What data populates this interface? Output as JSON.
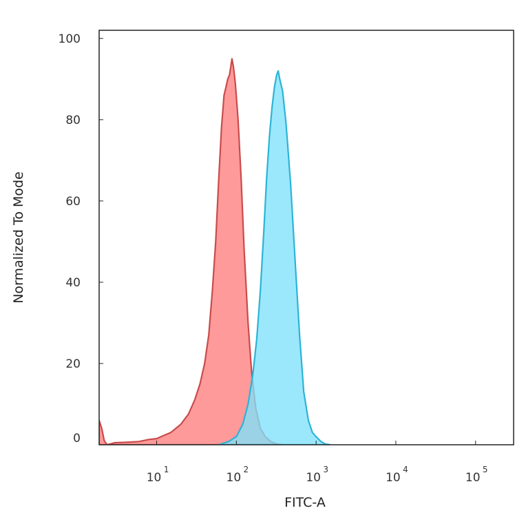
{
  "chart_data": {
    "type": "area",
    "title": "",
    "xlabel": "FITC-A",
    "ylabel": "Normalized To Mode",
    "xscale": "log",
    "xlim": [
      1.9,
      300000
    ],
    "ylim": [
      0,
      102
    ],
    "grid": false,
    "legend": "none",
    "x_ticks": [
      {
        "value": 10,
        "base": "10",
        "exp": "1"
      },
      {
        "value": 100,
        "base": "10",
        "exp": "2"
      },
      {
        "value": 1000,
        "base": "10",
        "exp": "3"
      },
      {
        "value": 10000,
        "base": "10",
        "exp": "4"
      },
      {
        "value": 100000,
        "base": "10",
        "exp": "5"
      }
    ],
    "y_ticks": [
      {
        "value": 0,
        "label": "0"
      },
      {
        "value": 20,
        "label": "20"
      },
      {
        "value": 40,
        "label": "40"
      },
      {
        "value": 60,
        "label": "60"
      },
      {
        "value": 80,
        "label": "80"
      },
      {
        "value": 100,
        "label": "100"
      }
    ],
    "series": [
      {
        "fill": "#ff9a9a",
        "stroke": "#c94b4b",
        "points": [
          [
            1.9,
            6
          ],
          [
            2.05,
            4
          ],
          [
            2.2,
            1
          ],
          [
            2.4,
            0
          ],
          [
            3,
            0.5
          ],
          [
            4,
            0.6
          ],
          [
            6,
            0.8
          ],
          [
            8,
            1.3
          ],
          [
            10,
            1.5
          ],
          [
            12,
            2.2
          ],
          [
            15,
            3.0
          ],
          [
            20,
            5.0
          ],
          [
            25,
            7.5
          ],
          [
            30,
            11
          ],
          [
            35,
            15
          ],
          [
            40,
            20
          ],
          [
            45,
            27
          ],
          [
            50,
            38
          ],
          [
            55,
            50
          ],
          [
            60,
            65
          ],
          [
            65,
            78
          ],
          [
            70,
            86
          ],
          [
            74,
            88
          ],
          [
            78,
            90
          ],
          [
            82,
            91
          ],
          [
            85,
            93
          ],
          [
            88,
            95
          ],
          [
            92,
            93
          ],
          [
            97,
            89
          ],
          [
            105,
            80
          ],
          [
            115,
            65
          ],
          [
            125,
            48
          ],
          [
            140,
            30
          ],
          [
            155,
            18
          ],
          [
            175,
            9
          ],
          [
            200,
            4
          ],
          [
            230,
            2
          ],
          [
            270,
            0.8
          ],
          [
            320,
            0.2
          ],
          [
            380,
            0
          ]
        ]
      },
      {
        "fill": "#7fe1fb",
        "stroke": "#2cb3d6",
        "points": [
          [
            60,
            0
          ],
          [
            80,
            0.8
          ],
          [
            100,
            2.0
          ],
          [
            120,
            5
          ],
          [
            140,
            10
          ],
          [
            160,
            17
          ],
          [
            180,
            26
          ],
          [
            200,
            38
          ],
          [
            220,
            52
          ],
          [
            240,
            66
          ],
          [
            260,
            76
          ],
          [
            280,
            83
          ],
          [
            300,
            88
          ],
          [
            320,
            91
          ],
          [
            335,
            92
          ],
          [
            350,
            90
          ],
          [
            380,
            87
          ],
          [
            420,
            79
          ],
          [
            480,
            64
          ],
          [
            550,
            44
          ],
          [
            620,
            27
          ],
          [
            700,
            13
          ],
          [
            800,
            6
          ],
          [
            900,
            3
          ],
          [
            1000,
            2
          ],
          [
            1150,
            0.8
          ],
          [
            1300,
            0.2
          ],
          [
            1500,
            0
          ]
        ]
      }
    ]
  },
  "colors": {
    "overlap": "#7a9bbb",
    "axis": "#222222"
  }
}
